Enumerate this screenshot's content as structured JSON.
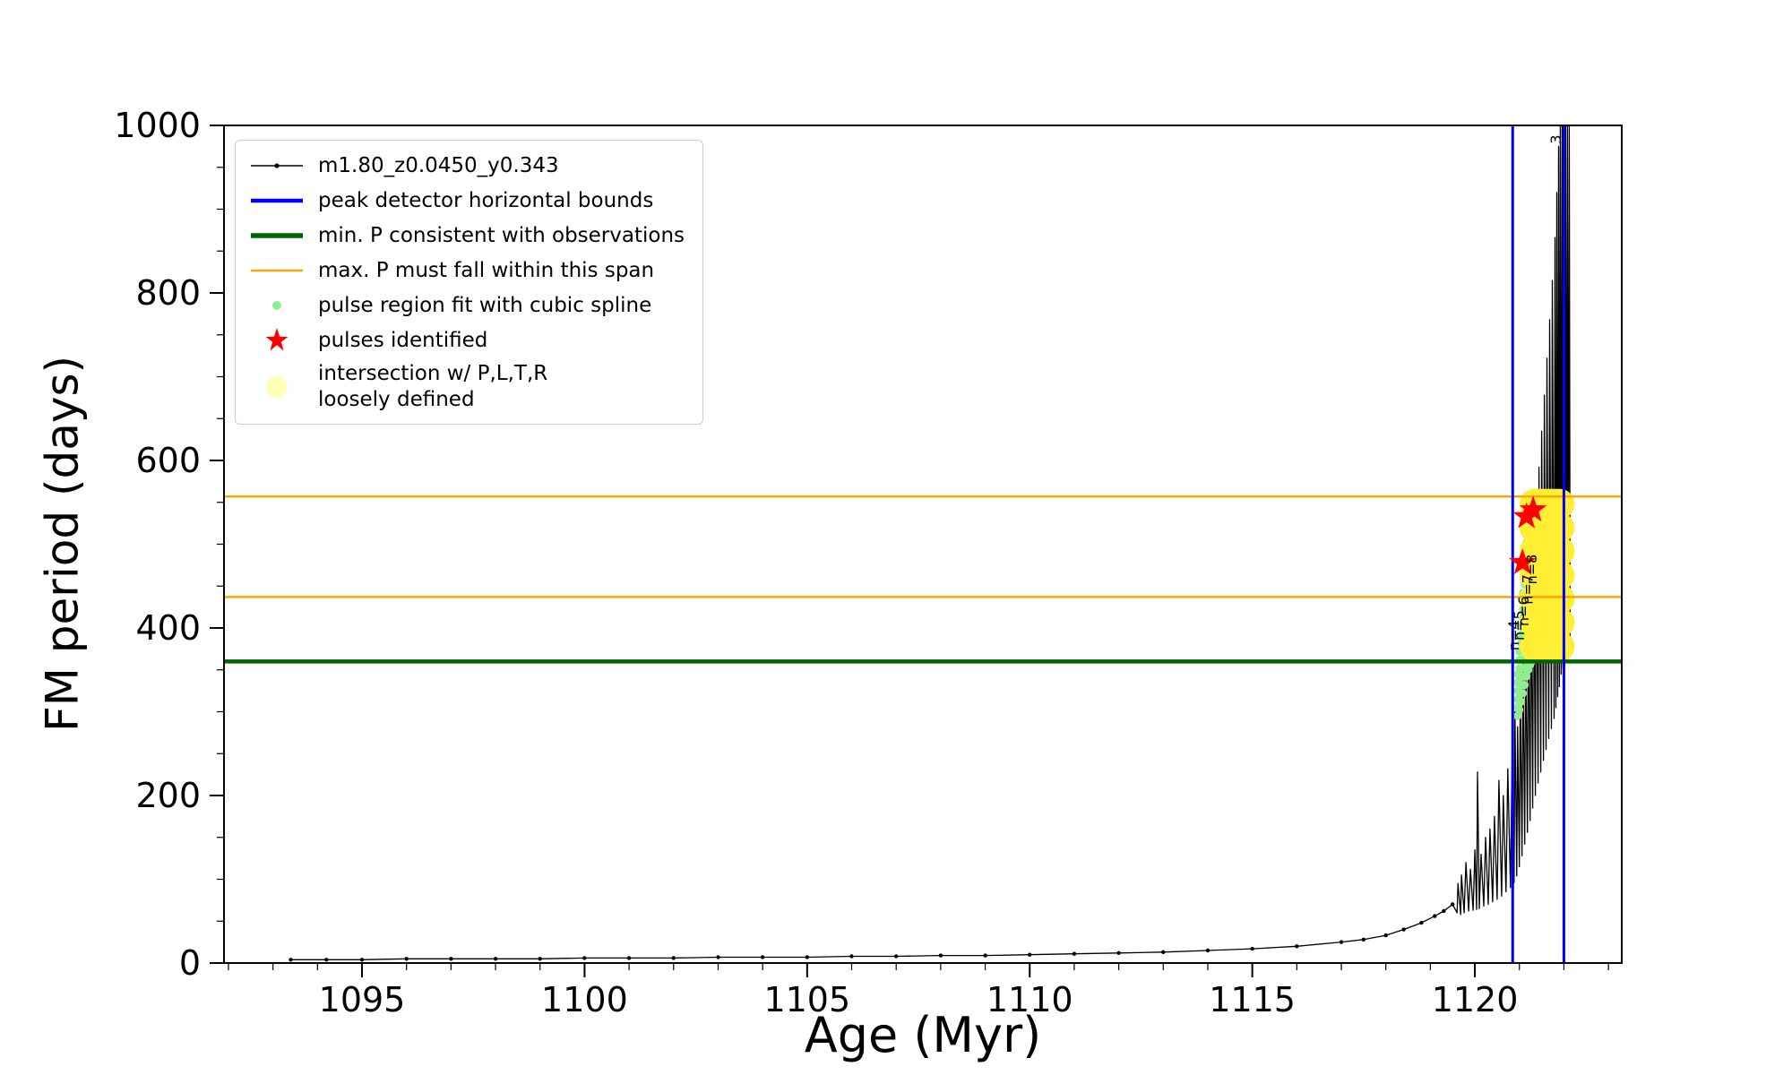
{
  "figure": {
    "background": "#ffffff"
  },
  "chart_data": {
    "type": "line",
    "title": "",
    "xlabel": "Age (Myr)",
    "ylabel": "FM period (days)",
    "xlim": [
      1091.9,
      1123.3
    ],
    "ylim": [
      0,
      1000
    ],
    "xticks": [
      1095,
      1100,
      1105,
      1110,
      1115,
      1120
    ],
    "yticks": [
      0,
      200,
      400,
      600,
      800,
      1000
    ],
    "x_minor_step": 1,
    "y_minor_step": 50,
    "grid": false,
    "legend_position": "upper-left",
    "series": {
      "track": {
        "name": "m1.80_z0.0450_y0.343",
        "color": "#000000",
        "base_points": [
          [
            1093.4,
            4
          ],
          [
            1094.2,
            4
          ],
          [
            1095,
            4
          ],
          [
            1096,
            5
          ],
          [
            1097,
            5
          ],
          [
            1098,
            5
          ],
          [
            1099,
            5
          ],
          [
            1100,
            6
          ],
          [
            1101,
            6
          ],
          [
            1102,
            6
          ],
          [
            1103,
            7
          ],
          [
            1104,
            7
          ],
          [
            1105,
            7
          ],
          [
            1106,
            8
          ],
          [
            1107,
            8
          ],
          [
            1108,
            9
          ],
          [
            1109,
            9
          ],
          [
            1110,
            10
          ],
          [
            1111,
            11
          ],
          [
            1112,
            12
          ],
          [
            1113,
            13
          ],
          [
            1114,
            15
          ],
          [
            1115,
            17
          ],
          [
            1116,
            20
          ],
          [
            1117,
            25
          ],
          [
            1117.5,
            28
          ],
          [
            1118,
            33
          ],
          [
            1118.4,
            40
          ],
          [
            1118.8,
            48
          ],
          [
            1119.1,
            56
          ],
          [
            1119.3,
            62
          ],
          [
            1119.5,
            70
          ]
        ],
        "pulse_points": [
          [
            1119.6,
            60
          ],
          [
            1119.62,
            95
          ],
          [
            1119.68,
            58
          ],
          [
            1119.7,
            105
          ],
          [
            1119.76,
            60
          ],
          [
            1119.8,
            120
          ],
          [
            1119.86,
            62
          ],
          [
            1119.9,
            112
          ],
          [
            1119.96,
            63
          ],
          [
            1120,
            135
          ],
          [
            1120.04,
            64
          ],
          [
            1120.06,
            228
          ],
          [
            1120.1,
            65
          ],
          [
            1120.14,
            130
          ],
          [
            1120.2,
            68
          ],
          [
            1120.24,
            150
          ],
          [
            1120.3,
            70
          ],
          [
            1120.34,
            160
          ],
          [
            1120.4,
            73
          ],
          [
            1120.44,
            175
          ],
          [
            1120.5,
            76
          ],
          [
            1120.54,
            218
          ],
          [
            1120.6,
            80
          ],
          [
            1120.64,
            200
          ],
          [
            1120.7,
            85
          ],
          [
            1120.74,
            232
          ],
          [
            1120.8,
            90
          ],
          [
            1120.84,
            262
          ],
          [
            1120.88,
            96
          ],
          [
            1120.9,
            300
          ],
          [
            1120.94,
            104
          ],
          [
            1120.96,
            282
          ],
          [
            1121,
            115
          ],
          [
            1121.02,
            330
          ],
          [
            1121.06,
            128
          ],
          [
            1121.08,
            362
          ],
          [
            1121.12,
            142
          ],
          [
            1121.14,
            400
          ],
          [
            1121.18,
            156
          ],
          [
            1121.2,
            438
          ],
          [
            1121.24,
            170
          ],
          [
            1121.26,
            474
          ],
          [
            1121.3,
            185
          ],
          [
            1121.32,
            515
          ],
          [
            1121.36,
            200
          ],
          [
            1121.38,
            552
          ],
          [
            1121.42,
            215
          ],
          [
            1121.44,
            592
          ],
          [
            1121.48,
            228
          ],
          [
            1121.5,
            635
          ],
          [
            1121.54,
            242
          ],
          [
            1121.56,
            678
          ],
          [
            1121.6,
            255
          ],
          [
            1121.62,
            722
          ],
          [
            1121.66,
            268
          ],
          [
            1121.68,
            768
          ],
          [
            1121.72,
            280
          ],
          [
            1121.74,
            815
          ],
          [
            1121.78,
            292
          ],
          [
            1121.8,
            866
          ],
          [
            1121.82,
            305
          ],
          [
            1121.84,
            920
          ],
          [
            1121.86,
            318
          ],
          [
            1121.88,
            975
          ],
          [
            1121.9,
            330
          ],
          [
            1121.92,
            1000
          ],
          [
            1121.94,
            345
          ],
          [
            1121.96,
            1000
          ],
          [
            1121.98,
            352
          ],
          [
            1122,
            1000
          ],
          [
            1122.02,
            356
          ],
          [
            1122.04,
            1000
          ],
          [
            1122.06,
            360
          ],
          [
            1122.08,
            1000
          ],
          [
            1122.1,
            364
          ],
          [
            1122.12,
            1000
          ],
          [
            1122.14,
            368
          ]
        ]
      },
      "peak_bounds": {
        "name": "peak detector horizontal bounds",
        "color": "#0000ff",
        "x_values": [
          1120.85,
          1122.0
        ]
      },
      "min_p": {
        "name": "min. P consistent with observations",
        "color": "#006400",
        "y_value": 360
      },
      "max_p": {
        "name": "max. P must fall within this span",
        "color": "#ffa500",
        "y_values": [
          437,
          557
        ]
      },
      "spline_fit": {
        "name": "pulse region fit with cubic spline",
        "color": "#90ee90",
        "bands": [
          {
            "x": 1120.96,
            "y0": 295,
            "y1": 352
          },
          {
            "x": 1121.0,
            "y0": 302,
            "y1": 372
          },
          {
            "x": 1121.04,
            "y0": 312,
            "y1": 408
          },
          {
            "x": 1121.08,
            "y0": 322,
            "y1": 444
          },
          {
            "x": 1121.12,
            "y0": 332,
            "y1": 478
          },
          {
            "x": 1121.16,
            "y0": 342,
            "y1": 508
          },
          {
            "x": 1121.2,
            "y0": 350,
            "y1": 532
          },
          {
            "x": 1121.24,
            "y0": 356,
            "y1": 548
          },
          {
            "x": 1121.28,
            "y0": 360,
            "y1": 556
          },
          {
            "x": 1121.32,
            "y0": 364,
            "y1": 560
          }
        ]
      },
      "pulses": {
        "name": "pulses identified",
        "color": "#ff0000",
        "points": [
          [
            1121.07,
            478
          ],
          [
            1121.16,
            533
          ],
          [
            1121.31,
            541
          ]
        ]
      },
      "intersection": {
        "name": "intersection w/ P,L,T,R loosely defined",
        "color": "#ffee33",
        "region": {
          "x0": 1121.35,
          "x1": 1121.9,
          "y0": 378,
          "y1": 548
        }
      }
    },
    "annotations": [
      {
        "text": "n=4",
        "x": 1120.99,
        "y": 373,
        "rotation": -90
      },
      {
        "text": "n=5",
        "x": 1121.11,
        "y": 385,
        "rotation": -90
      },
      {
        "text": "n=6",
        "x": 1121.21,
        "y": 402,
        "rotation": -90
      },
      {
        "text": "n=7",
        "x": 1121.3,
        "y": 428,
        "rotation": -90
      },
      {
        "text": "n=8",
        "x": 1121.39,
        "y": 452,
        "rotation": -90
      },
      {
        "text": "3",
        "x": 1121.93,
        "y": 978,
        "rotation": -90
      }
    ]
  },
  "legend": {
    "items": [
      {
        "label": "m1.80_z0.0450_y0.343",
        "color": "#000000",
        "marker": "line-dot"
      },
      {
        "label": "peak detector horizontal bounds",
        "color": "#0000ff",
        "marker": "thick-line"
      },
      {
        "label": "min. P consistent with observations",
        "color": "#006400",
        "marker": "thick-line"
      },
      {
        "label": "max. P must fall within this span",
        "color": "#ffa500",
        "marker": "line"
      },
      {
        "label": "pulse region fit with cubic spline",
        "color": "#90ee90",
        "marker": "small-dot"
      },
      {
        "label": "pulses identified",
        "color": "#ff0000",
        "marker": "star"
      },
      {
        "label": "intersection w/ P,L,T,R\nloosely defined",
        "color": "#ffff80",
        "marker": "big-dot"
      }
    ]
  }
}
